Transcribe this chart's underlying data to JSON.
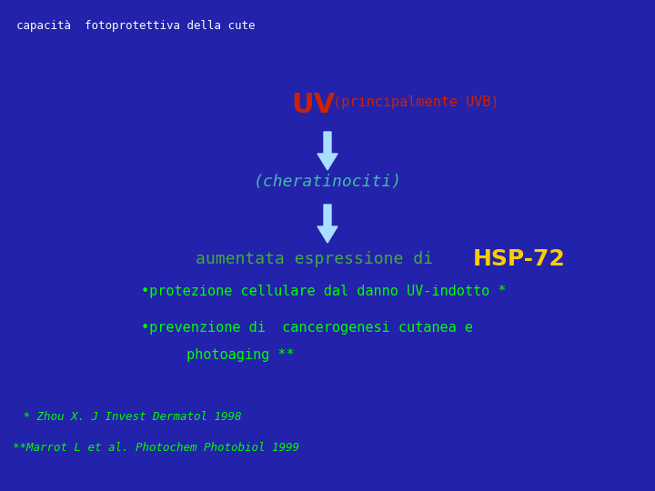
{
  "background_color": "#2222AA",
  "title_text": "capacità  fotoprotettiva della cute",
  "title_color": "#FFFFFF",
  "title_fontsize": 9,
  "uv_text_large": "UV",
  "uv_color": "#CC2200",
  "uv_parenthetical": " (principalmente UVB)",
  "uv_paren_color": "#CC2200",
  "uv_fontsize_large": 22,
  "uv_fontsize_paren": 11,
  "cherato_text": "(cheratinociti)",
  "cherato_color": "#44BBAA",
  "cherato_fontsize": 13,
  "aumentata_text1": "aumentata espressione di ",
  "aumentata_text2": "HSP-72",
  "aumentata_color": "#44AA44",
  "aumentata_hsp_color": "#FFCC00",
  "aumentata_fontsize": 13,
  "aumentata_hsp_fontsize": 18,
  "bullet1_text": "•protezione cellulare dal danno UV-indotto *",
  "bullet1_color": "#00FF00",
  "bullet1_fontsize": 11,
  "bullet2_text": "•prevenzione di  cancerogenesi cutanea e",
  "bullet2_color": "#00FF00",
  "bullet2_fontsize": 11,
  "photoaging_text": "photoaging **",
  "photoaging_color": "#00FF00",
  "photoaging_fontsize": 11,
  "ref1_text": " * Zhou X. J Invest Dermatol 1998",
  "ref1_color": "#00FF00",
  "ref1_fontsize": 9,
  "ref2_text": "**Marrot L et al. Photochem Photobiol 1999",
  "ref2_color": "#00FF00",
  "ref2_fontsize": 9,
  "arrow_facecolor": "#AADDFF",
  "fig_width": 7.2,
  "fig_height": 5.4,
  "fig_dpi": 100
}
